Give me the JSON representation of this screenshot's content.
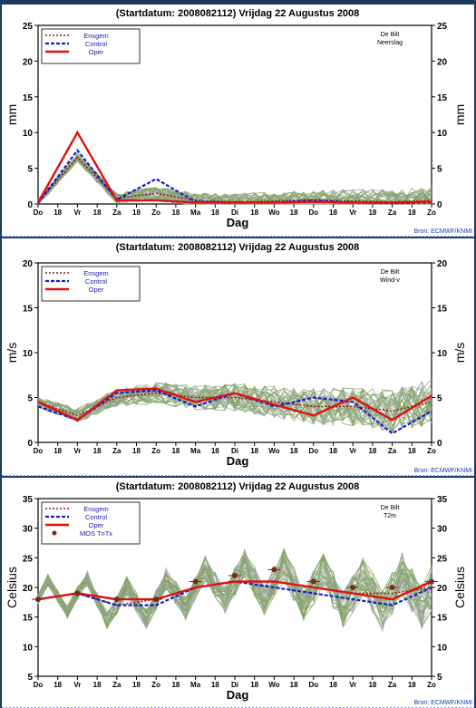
{
  "common": {
    "title": "(Startdatum: 2008082112)   Vrijdag   22 Augustus   2008",
    "station": "De Bilt",
    "xlabel": "Dag",
    "source": "Bron: ECMWF/KNMI",
    "days": [
      "Do",
      "Vr",
      "Za",
      "Zo",
      "Ma",
      "Di",
      "Wo",
      "Do",
      "Vr",
      "Za",
      "Zo"
    ],
    "legend": [
      "Ensgem",
      "Control",
      "Oper"
    ]
  },
  "panels": [
    {
      "name": "Neerslag",
      "unit": "mm",
      "legend_extra": ""
    },
    {
      "name": "Wind-v",
      "unit": "m/s",
      "legend_extra": ""
    },
    {
      "name": "T2m",
      "unit": "Celsius",
      "legend_extra": "MOS TnTx"
    }
  ],
  "chart_data": [
    {
      "type": "line",
      "title": "(Startdatum: 2008082112)   Vrijdag   22 Augustus   2008",
      "subtitle": "De Bilt Neerslag",
      "xlabel": "Dag",
      "ylabel": "mm",
      "categories": [
        "Do",
        "Vr",
        "Za",
        "Zo",
        "Ma",
        "Di",
        "Wo",
        "Do",
        "Vr",
        "Za",
        "Zo"
      ],
      "ylim": [
        0,
        25
      ],
      "series": [
        {
          "name": "Ensgem",
          "color": "#8b1a1a",
          "values": [
            0.2,
            6.5,
            0.8,
            1.5,
            0.5,
            0.3,
            0.4,
            0.6,
            0.4,
            0.3,
            0.5
          ]
        },
        {
          "name": "Control",
          "color": "#1a1acc",
          "values": [
            0.1,
            7.5,
            0.6,
            3.5,
            0.3,
            0.2,
            0.2,
            0.5,
            0.2,
            0.1,
            0.2
          ]
        },
        {
          "name": "Oper",
          "color": "#dd1111",
          "values": [
            0.2,
            10.0,
            0.5,
            0.5,
            0.2,
            0.2,
            0.2,
            0.3,
            0.2,
            0.2,
            0.3
          ]
        }
      ]
    },
    {
      "type": "line",
      "title": "(Startdatum: 2008082112)   Vrijdag   22 Augustus   2008",
      "subtitle": "De Bilt Wind-v",
      "xlabel": "Dag",
      "ylabel": "m/s",
      "categories": [
        "Do",
        "Vr",
        "Za",
        "Zo",
        "Ma",
        "Di",
        "Wo",
        "Do",
        "Vr",
        "Za",
        "Zo"
      ],
      "ylim": [
        0,
        20
      ],
      "series": [
        {
          "name": "Ensgem",
          "color": "#8b1a1a",
          "values": [
            4.5,
            3.0,
            5.0,
            5.5,
            5.0,
            5.0,
            4.5,
            4.0,
            4.0,
            3.5,
            4.5
          ]
        },
        {
          "name": "Control",
          "color": "#1a1acc",
          "values": [
            4.0,
            2.5,
            5.5,
            5.8,
            4.0,
            5.5,
            4.0,
            5.0,
            4.5,
            1.0,
            3.5
          ]
        },
        {
          "name": "Oper",
          "color": "#dd1111",
          "values": [
            4.5,
            2.5,
            5.8,
            6.0,
            4.5,
            5.5,
            4.2,
            3.0,
            5.0,
            2.5,
            5.2
          ]
        }
      ]
    },
    {
      "type": "line",
      "title": "(Startdatum: 2008082112)   Vrijdag   22 Augustus   2008",
      "subtitle": "De Bilt T2m",
      "xlabel": "Dag",
      "ylabel": "Celsius",
      "categories": [
        "Do",
        "Vr",
        "Za",
        "Zo",
        "Ma",
        "Di",
        "Wo",
        "Do",
        "Vr",
        "Za",
        "Zo"
      ],
      "ylim": [
        5,
        35
      ],
      "series": [
        {
          "name": "Ensgem",
          "color": "#8b1a1a",
          "values": [
            18,
            19,
            17,
            18,
            20,
            21,
            21,
            20,
            19,
            19,
            20
          ]
        },
        {
          "name": "Control",
          "color": "#1a1acc",
          "values": [
            18,
            19,
            17,
            17,
            20,
            21,
            20,
            19,
            18,
            17,
            20
          ]
        },
        {
          "name": "Oper",
          "color": "#dd1111",
          "values": [
            18,
            19,
            18,
            18,
            20,
            21,
            21,
            20,
            19,
            18,
            21
          ]
        },
        {
          "name": "MOS TnTx",
          "color": "#7a2a1a",
          "values": [
            18,
            19,
            18,
            18,
            21,
            22,
            23,
            21,
            20,
            20,
            21
          ]
        }
      ]
    }
  ]
}
